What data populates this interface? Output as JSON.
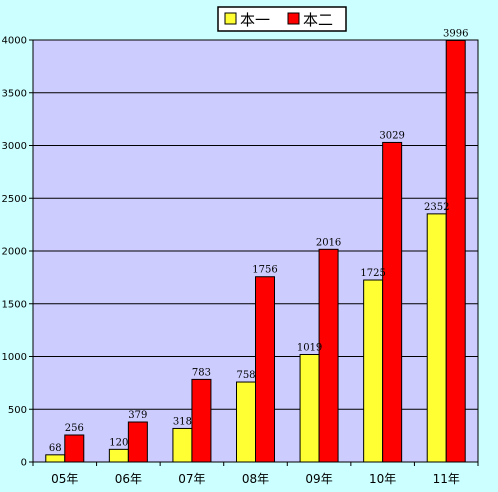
{
  "chart_data": {
    "type": "bar",
    "categories": [
      "05年",
      "06年",
      "07年",
      "08年",
      "09年",
      "10年",
      "11年"
    ],
    "series": [
      {
        "name": "本一",
        "values": [
          68,
          120,
          318,
          758,
          1019,
          1725,
          2352
        ],
        "color": "#ffff33"
      },
      {
        "name": "本二",
        "values": [
          256,
          379,
          783,
          1756,
          2016,
          3029,
          3996
        ],
        "color": "#ff0000"
      }
    ],
    "ylim": [
      0,
      4000
    ],
    "yticks": [
      0,
      500,
      1000,
      1500,
      2000,
      2500,
      3000,
      3500,
      4000
    ],
    "grid": true,
    "legend": "top-center",
    "colors": {
      "background": "#ccffff",
      "plot": "#ccccff",
      "gridline": "#000000"
    }
  }
}
